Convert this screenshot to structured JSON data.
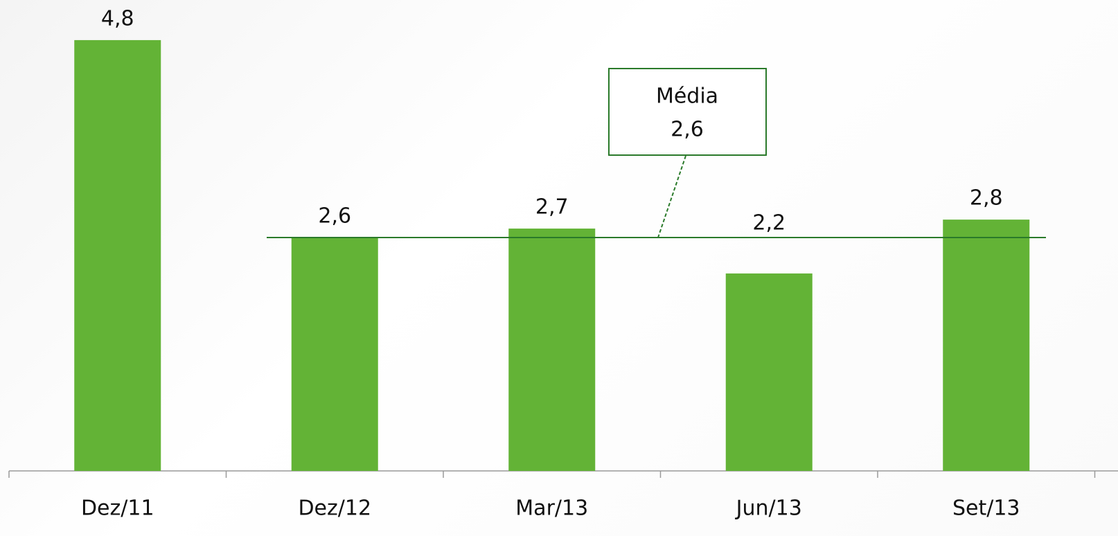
{
  "chart_data": {
    "type": "bar",
    "categories": [
      "Dez/11",
      "Dez/12",
      "Mar/13",
      "Jun/13",
      "Set/13"
    ],
    "values": [
      4.8,
      2.6,
      2.7,
      2.2,
      2.8
    ],
    "value_labels": [
      "4,8",
      "2,6",
      "2,7",
      "2,2",
      "2,8"
    ],
    "color": "#63b336",
    "ylim": [
      0,
      5
    ],
    "reference_line": {
      "name": "Média",
      "value": 2.6,
      "value_label": "2,6",
      "color": "#2a7a2a"
    }
  }
}
